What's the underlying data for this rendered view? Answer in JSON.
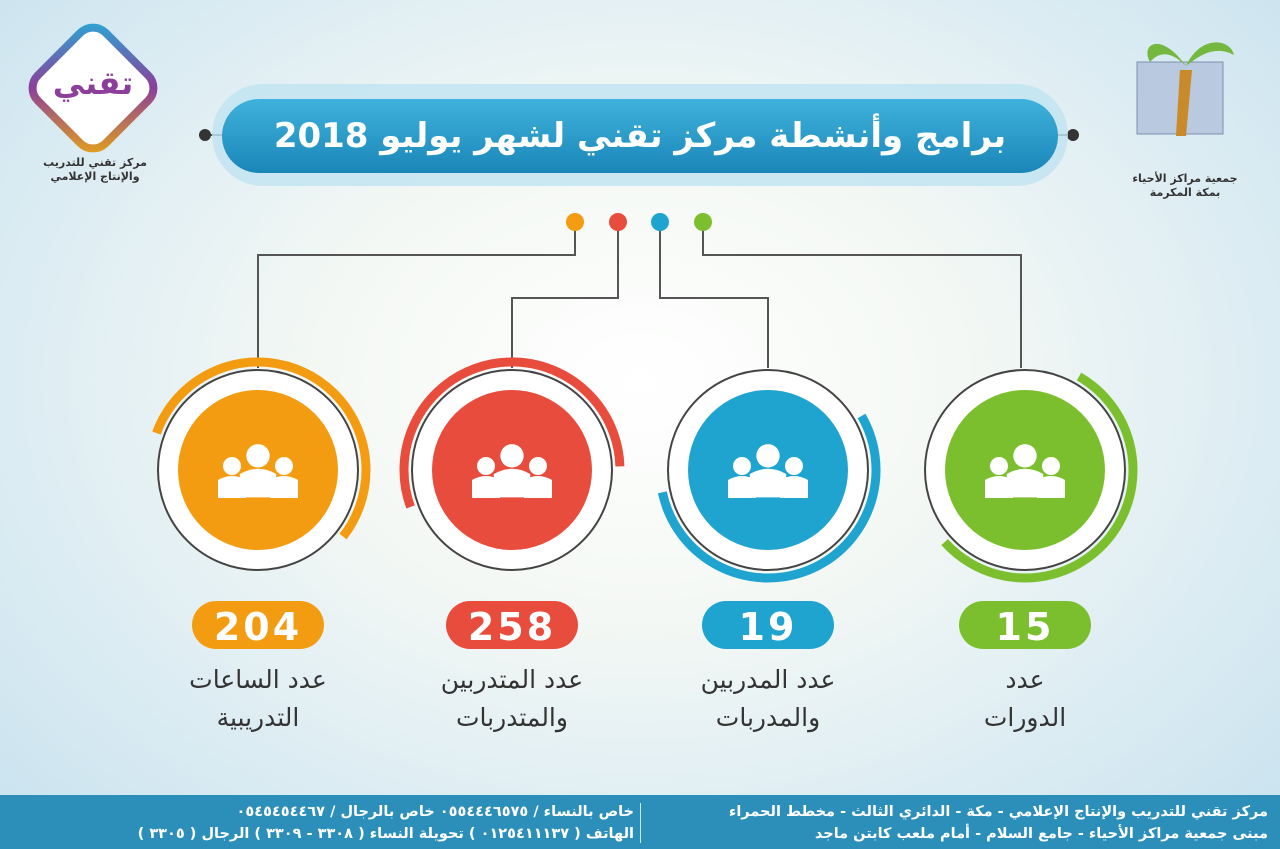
{
  "header": {
    "title": "برامج وأنشطة مركز تقني لشهر يوليو 2018"
  },
  "left_logo": {
    "mark": "تقني",
    "caption": [
      "مركز تقني للتدريب",
      "والإنتاج الإعلامي"
    ]
  },
  "right_logo": {
    "caption": [
      "جمعية مراكز الأحياء",
      "بمكة المكرمة"
    ]
  },
  "stats": [
    {
      "value": 204,
      "label": [
        "عدد الساعات",
        "التدريبية"
      ],
      "color": "#f39c12"
    },
    {
      "value": 258,
      "label": [
        "عدد المتدربين",
        "والمتدربات"
      ],
      "color": "#e74c3c"
    },
    {
      "value": 19,
      "label": [
        "عدد المدربين",
        "والمدربات"
      ],
      "color": "#1fa3cf"
    },
    {
      "value": 15,
      "label": [
        "عدد",
        "الدورات"
      ],
      "color": "#7cbf2e"
    }
  ],
  "footer": {
    "address": [
      "مركز تقني للتدريب والإنتاج الإعلامي - مكة - الدائري الثالث - مخطط الحمراء",
      "مبنى جمعية مراكز الأحياء - جامع السلام - أمام ملعب كابتن ماجد"
    ],
    "contact": [
      "خاص بالنساء / ٠٥٥٤٤٤٦٥٧٥    خاص بالرجال / ٠٥٤٥٤٥٤٤٦٧",
      "الهاتف ( ٠١٢٥٤١١١٣٧ )  تحويلة النساء ( ٣٣٠٨ - ٣٣٠٩ )  الرجال ( ٣٣٠٥ )"
    ]
  }
}
